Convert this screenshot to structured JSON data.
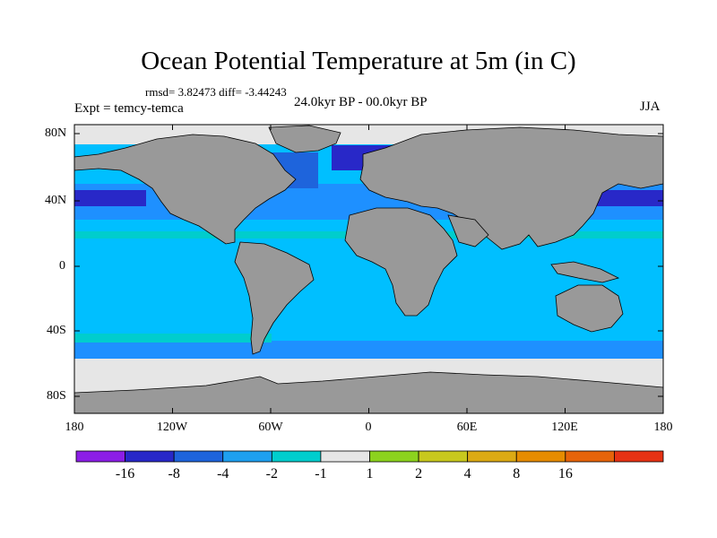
{
  "title": "Ocean Potential Temperature at 5m (in C)",
  "stats": "rmsd= 3.82473 diff= -3.44243",
  "period": "24.0kyr BP - 00.0kyr BP",
  "experiment": "Expt = temcy-temca",
  "season": "JJA",
  "colors": {
    "land": "#999999",
    "coast": "#000000",
    "ocean_m2_to_m1": "#00bfff",
    "ocean_m4_to_m2": "#1e90ff",
    "ocean_m8_to_m4": "#1e64dc",
    "ocean_m16_to_m8": "#2828c8",
    "ocean_m1_to_1": "#e6e6e6",
    "ocean_teal": "#00cdcd"
  },
  "map": {
    "lat_labels": [
      "80N",
      "40N",
      "0",
      "40S",
      "80S"
    ],
    "lon_labels": [
      "180",
      "120W",
      "60W",
      "0",
      "60E",
      "120E",
      "180"
    ]
  },
  "colorbar": {
    "colors": [
      "#8c1ee6",
      "#2828c8",
      "#1e64dc",
      "#1ea0f0",
      "#00cdcd",
      "#e6e6e6",
      "#8cd21e",
      "#c8c81e",
      "#dcaa14",
      "#e68c00",
      "#e6640a",
      "#e63214"
    ],
    "labels": [
      "-16",
      "-8",
      "-4",
      "-2",
      "-1",
      "1",
      "2",
      "4",
      "8",
      "16"
    ]
  }
}
